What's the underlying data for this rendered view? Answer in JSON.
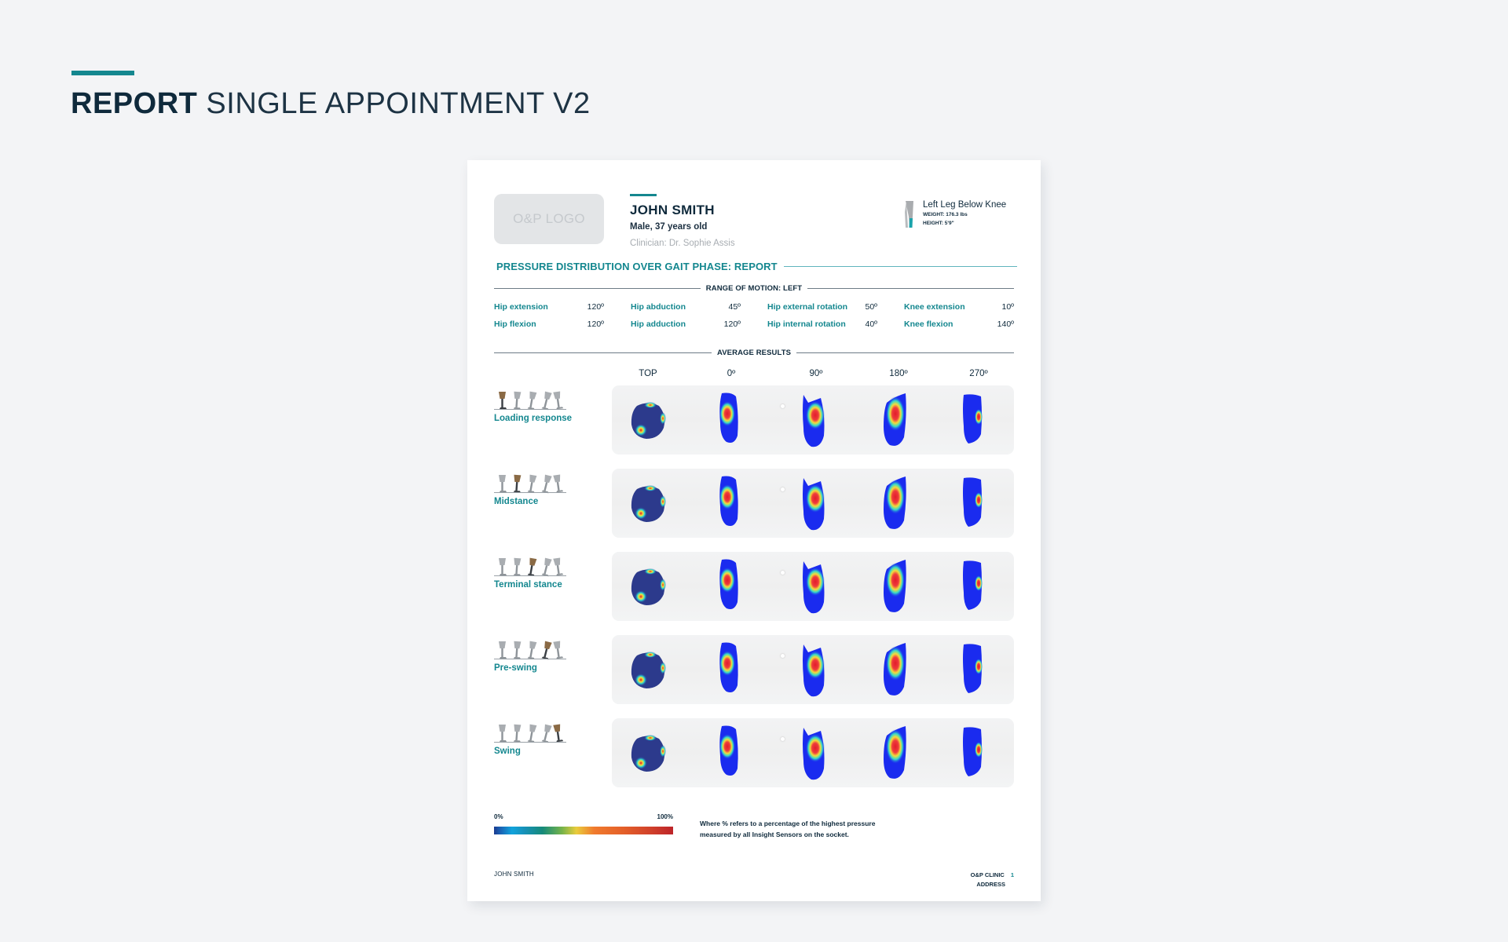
{
  "colors": {
    "teal": "#14878f",
    "teal_rule": "#5fb4bd",
    "navy": "#0f2a3c",
    "muted": "#a8adb2"
  },
  "heading": {
    "bold": "REPORT",
    "light": "SINGLE APPOINTMENT V2"
  },
  "sheet": {
    "logo": "O&P LOGO",
    "patient": {
      "name": "JOHN SMITH",
      "details": "Male, 37 years old",
      "clinician": "Clinician: Dr. Sophie Assis"
    },
    "limb": {
      "icon": "leg-icon",
      "title": "Left Leg Below Knee",
      "weight": "WEIGHT: 176.3 lbs",
      "height": "HEIGHT: 5'9\""
    },
    "section_title": "PRESSURE DISTRIBUTION OVER GAIT PHASE: REPORT",
    "rom": {
      "title": "RANGE OF MOTION: LEFT",
      "items": [
        {
          "label": "Hip extension",
          "value": "120º"
        },
        {
          "label": "Hip abduction",
          "value": "45º"
        },
        {
          "label": "Hip external rotation",
          "value": "50º"
        },
        {
          "label": "Knee extension",
          "value": "10º"
        },
        {
          "label": "Hip flexion",
          "value": "120º"
        },
        {
          "label": "Hip adduction",
          "value": "120º"
        },
        {
          "label": "Hip internal rotation",
          "value": "40º"
        },
        {
          "label": "Knee flexion",
          "value": "140º"
        }
      ]
    },
    "results": {
      "title": "AVERAGE RESULTS",
      "columns": [
        "TOP",
        "0º",
        "90º",
        "180º",
        "270º"
      ],
      "rows": [
        {
          "phase": "Loading response",
          "active_step": 0,
          "icon": "gait-phase-icon"
        },
        {
          "phase": "Midstance",
          "active_step": 1,
          "icon": "gait-phase-icon"
        },
        {
          "phase": "Terminal stance",
          "active_step": 2,
          "icon": "gait-phase-icon"
        },
        {
          "phase": "Pre-swing",
          "active_step": 3,
          "icon": "gait-phase-icon"
        },
        {
          "phase": "Swing",
          "active_step": 4,
          "icon": "gait-phase-icon"
        }
      ]
    },
    "legend": {
      "min": "0%",
      "max": "100%",
      "note": "Where % refers to a percentage of the highest pressure measured by all Insight Sensors on the socket."
    },
    "footer": {
      "patient": "JOHN SMITH",
      "clinic": "O&P CLINIC",
      "address": "ADDRESS",
      "page": "1"
    }
  }
}
